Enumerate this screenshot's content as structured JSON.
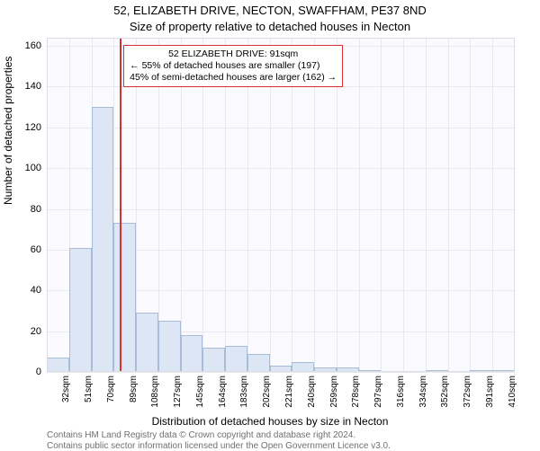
{
  "title_line1": "52, ELIZABETH DRIVE, NECTON, SWAFFHAM, PE37 8ND",
  "title_line2": "Size of property relative to detached houses in Necton",
  "ylabel": "Number of detached properties",
  "xlabel": "Distribution of detached houses by size in Necton",
  "credit_line1": "Contains HM Land Registry data © Crown copyright and database right 2024.",
  "credit_line2": "Contains public sector information licensed under the Open Government Licence v3.0.",
  "chart": {
    "type": "histogram",
    "background_color": "#fafaff",
    "grid_color": "#e8e8ef",
    "bar_fill": "#dce6f4",
    "bar_border": "#a8bcd8",
    "marker_color": "#d93030",
    "axis_border": "#dcdce4",
    "title_fontsize": 13,
    "label_fontsize": 12,
    "tick_fontsize": 11,
    "ylim": [
      0,
      164
    ],
    "ytick_step": 20,
    "yticks": [
      0,
      20,
      40,
      60,
      80,
      100,
      120,
      140,
      160
    ],
    "xticks": [
      "32sqm",
      "51sqm",
      "70sqm",
      "89sqm",
      "108sqm",
      "127sqm",
      "145sqm",
      "164sqm",
      "183sqm",
      "202sqm",
      "221sqm",
      "240sqm",
      "259sqm",
      "278sqm",
      "297sqm",
      "316sqm",
      "334sqm",
      "352sqm",
      "372sqm",
      "391sqm",
      "410sqm"
    ],
    "bar_values": [
      7,
      61,
      130,
      73,
      29,
      25,
      18,
      12,
      13,
      9,
      3,
      5,
      2,
      2,
      1,
      0,
      0,
      1,
      0,
      1,
      1
    ],
    "marker_x_value": 91,
    "xlim": [
      32,
      410
    ],
    "callout": {
      "line1": "52 ELIZABETH DRIVE: 91sqm",
      "line2": "← 55% of detached houses are smaller (197)",
      "line3": "45% of semi-detached houses are larger (162) →"
    }
  }
}
